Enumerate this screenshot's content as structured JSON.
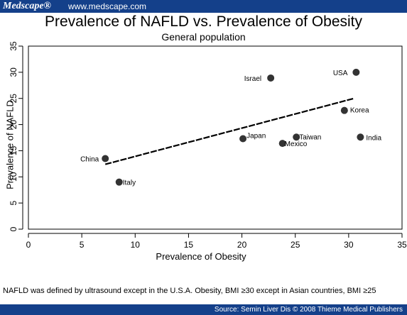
{
  "header": {
    "logo": "Medscape®",
    "site": "www.medscape.com"
  },
  "footer": {
    "source": "Source: Semin Liver Dis © 2008 Thieme Medical Publishers"
  },
  "footnote": "NAFLD was defined by ultrasound except in the U.S.A.  Obesity, BMI ≥30 except in Asian countries, BMI ≥25",
  "colors": {
    "bar": "#14408a",
    "marker": "#333333"
  },
  "chart_data": {
    "type": "scatter",
    "title": "Prevalence of NAFLD vs. Prevalence of Obesity",
    "subtitle": "General population",
    "xlabel": "Prevalence of Obesity",
    "ylabel": "Prevalence of NAFLD",
    "xlim": [
      0,
      35
    ],
    "ylim": [
      0,
      35
    ],
    "xticks": [
      0,
      5,
      10,
      15,
      20,
      25,
      30,
      35
    ],
    "yticks": [
      0,
      5,
      10,
      15,
      20,
      25,
      30,
      35
    ],
    "grid": false,
    "points": [
      {
        "label": "China",
        "x": 7.2,
        "y": 13.5
      },
      {
        "label": "Italy",
        "x": 8.5,
        "y": 9.0
      },
      {
        "label": "Japan",
        "x": 20.1,
        "y": 17.3
      },
      {
        "label": "Mexico",
        "x": 23.8,
        "y": 16.4
      },
      {
        "label": "Taiwan",
        "x": 25.1,
        "y": 17.6
      },
      {
        "label": "Israel",
        "x": 22.7,
        "y": 28.9
      },
      {
        "label": "USA",
        "x": 30.7,
        "y": 30.0
      },
      {
        "label": "Korea",
        "x": 29.6,
        "y": 22.7
      },
      {
        "label": "India",
        "x": 31.1,
        "y": 17.6
      }
    ],
    "fit_line": {
      "x": [
        7.2,
        30.5
      ],
      "y": [
        12.4,
        25.0
      ]
    }
  }
}
